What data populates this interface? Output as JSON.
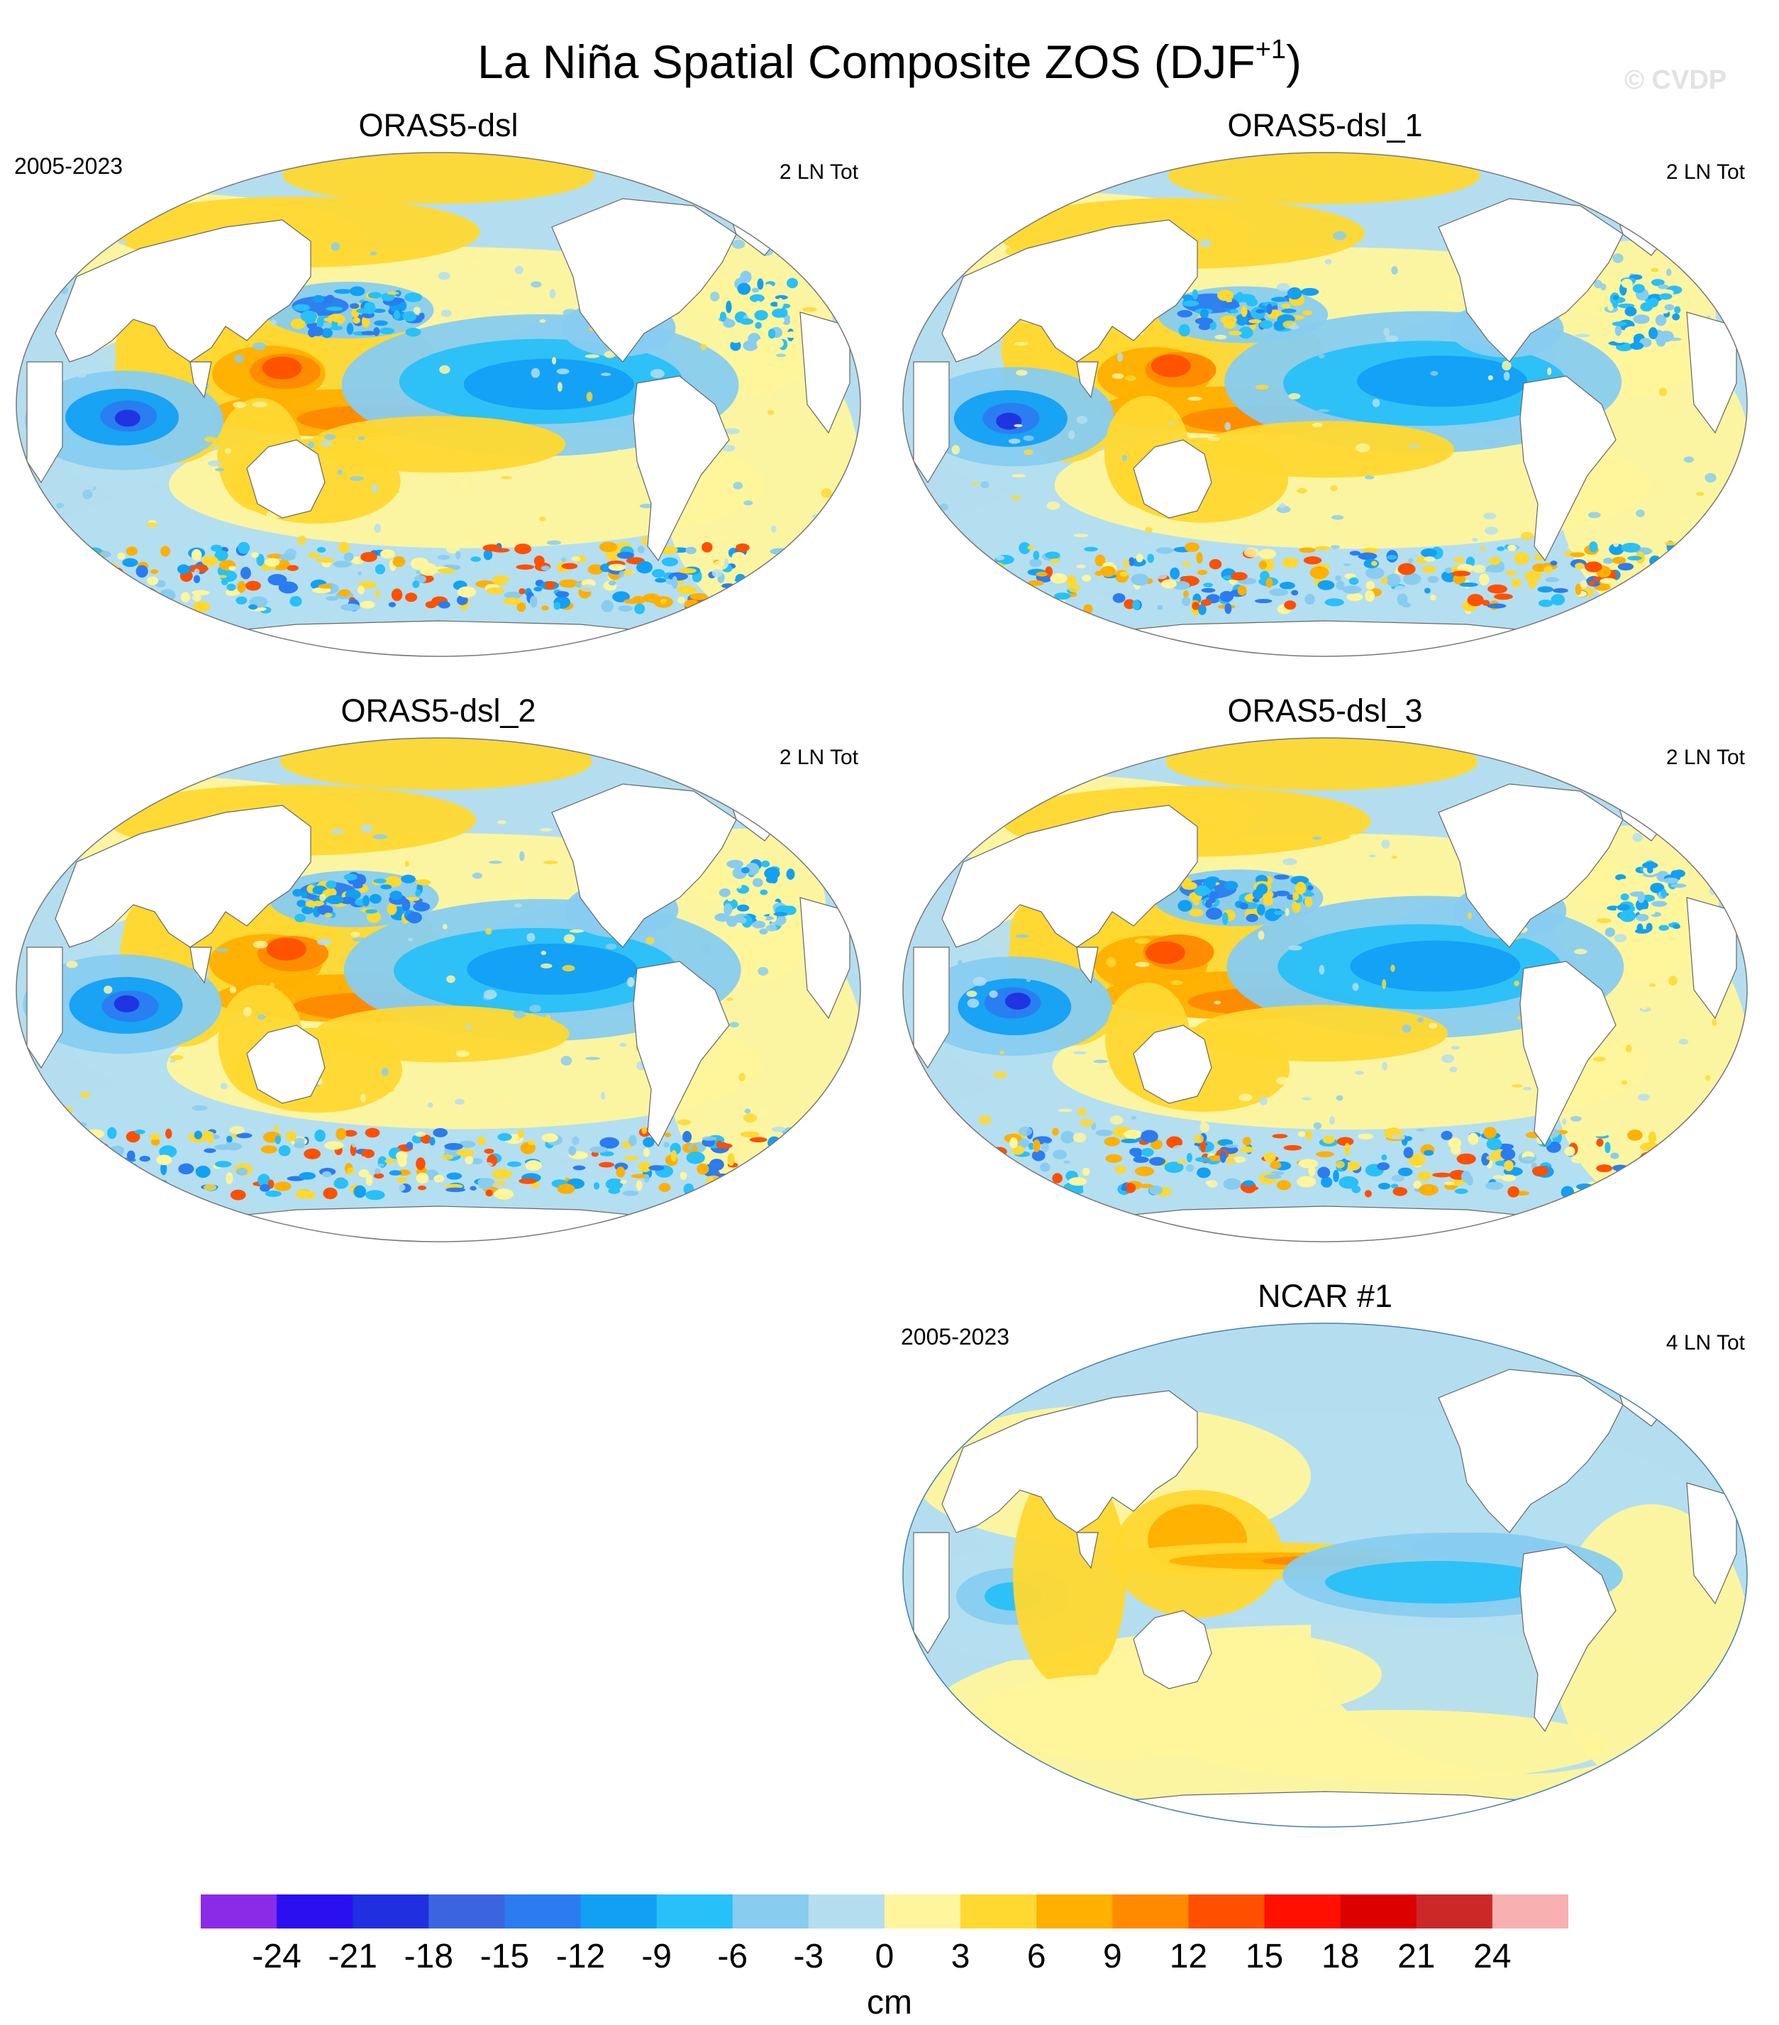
{
  "figure": {
    "title_main": "La Niña Spatial Composite ZOS (DJF",
    "title_sup": "+1",
    "title_end": ")",
    "watermark": "© CVDP"
  },
  "panels": [
    {
      "title": "ORAS5-dsl",
      "period": "2005-2023",
      "count": "2 LN Tot",
      "style": "reanalysis"
    },
    {
      "title": "ORAS5-dsl_1",
      "period": "",
      "count": "2 LN Tot",
      "style": "reanalysis"
    },
    {
      "title": "ORAS5-dsl_2",
      "period": "",
      "count": "2 LN Tot",
      "style": "reanalysis"
    },
    {
      "title": "ORAS5-dsl_3",
      "period": "",
      "count": "2 LN Tot",
      "style": "reanalysis"
    },
    {
      "title": "NCAR #1",
      "period": "2005-2023",
      "count": "4 LN Tot",
      "style": "model"
    }
  ],
  "colorbar": {
    "unit": "cm",
    "ticks": [
      "-24",
      "-21",
      "-18",
      "-15",
      "-12",
      "-9",
      "-6",
      "-3",
      "0",
      "3",
      "6",
      "9",
      "12",
      "15",
      "18",
      "21",
      "24"
    ],
    "colors": [
      "#8a2be8",
      "#2a10f0",
      "#2030e0",
      "#3a64e0",
      "#2a7cf0",
      "#12a0f4",
      "#28c0f8",
      "#88ccf0",
      "#b4def0",
      "#fff59c",
      "#ffd830",
      "#ffb000",
      "#ff8a00",
      "#ff5000",
      "#ff1000",
      "#dd0000",
      "#cc2828",
      "#f8b0b0"
    ]
  }
}
